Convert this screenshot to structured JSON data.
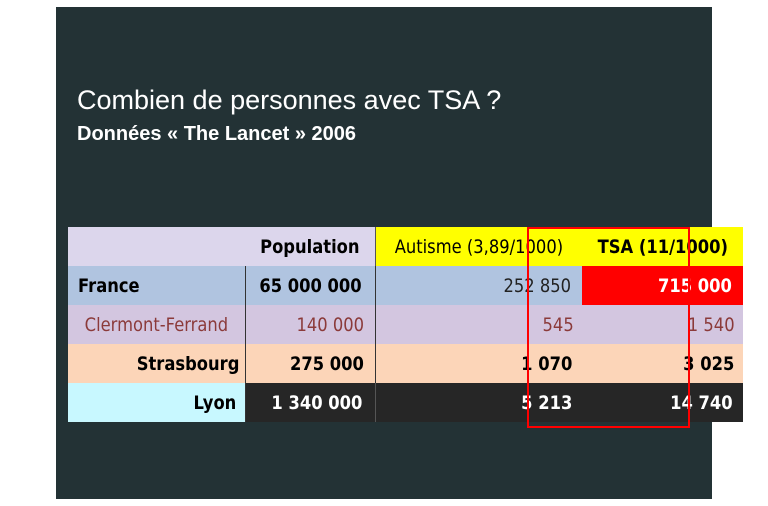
{
  "slide": {
    "title": "Combien de personnes avec TSA ?",
    "subtitle": "Données «  The Lancet  »  2006"
  },
  "table": {
    "headers": [
      "",
      "Population",
      "Autisme (3,89/1000)",
      "TSA (11/1000)"
    ],
    "rows": [
      {
        "label": "France",
        "population": "65 000 000",
        "autisme": "252 850",
        "tsa": "715 000"
      },
      {
        "label": "Clermont-Ferrand",
        "population": "140 000",
        "autisme": "545",
        "tsa": "1 540"
      },
      {
        "label": "Strasbourg",
        "population": "275 000",
        "autisme": "1 070",
        "tsa": "3 025"
      },
      {
        "label": "Lyon",
        "population": "1 340 000",
        "autisme": "5 213",
        "tsa": "14 740"
      }
    ]
  },
  "colors": {
    "slide_background": "#233235",
    "header_yellow": "#ffff00",
    "tsa_highlight": "#ff0000"
  }
}
